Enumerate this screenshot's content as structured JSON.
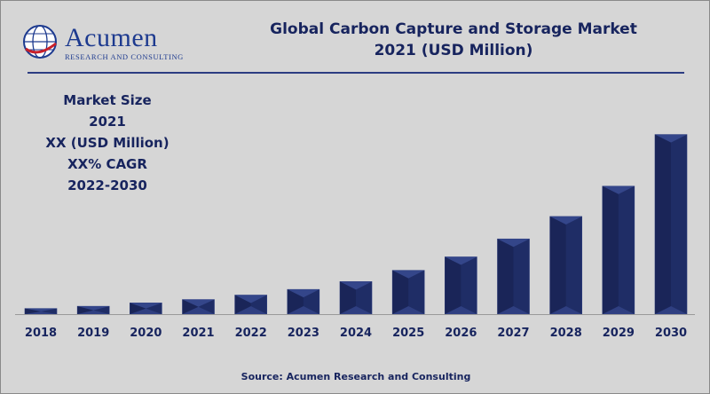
{
  "brand": {
    "name": "Acumen",
    "tagline": "RESEARCH AND CONSULTING"
  },
  "header": {
    "title_line1": "Global Carbon Capture and Storage Market",
    "title_line2": "2021 (USD Million)"
  },
  "info_box": {
    "line1": "Market Size",
    "line2": "2021",
    "line3": "XX (USD Million)",
    "line4": "XX% CAGR",
    "line5": "2022-2030"
  },
  "footer": {
    "source": "Source: Acumen Research and Consulting"
  },
  "colors": {
    "bar": "#1f2d66",
    "bar_light": "#3c4f97",
    "bar_dark": "#141d47",
    "text": "#17245e",
    "background": "#d6d6d6"
  },
  "chart_data": {
    "type": "bar",
    "title": "Global Carbon Capture and Storage Market 2021 (USD Million)",
    "categories": [
      "2018",
      "2019",
      "2020",
      "2021",
      "2022",
      "2023",
      "2024",
      "2025",
      "2026",
      "2027",
      "2028",
      "2029",
      "2030"
    ],
    "values": [
      2.5,
      3.5,
      5,
      6.5,
      8.5,
      11,
      14.5,
      19.5,
      25.5,
      33.5,
      43.5,
      57,
      80
    ],
    "ylim": [
      0,
      100
    ],
    "xlabel": "",
    "ylabel": "",
    "grid": false,
    "legend": "none",
    "value_note": "relative bar heights; no y-axis scale is printed"
  }
}
